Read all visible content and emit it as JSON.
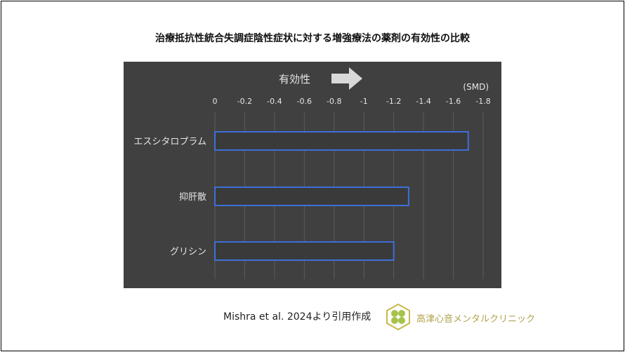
{
  "page": {
    "title": "治療抵抗性統合失調症陰性症状に対する増強療法の薬剤の有効性の比較",
    "source": "Mishra et al. 2024より引用作成",
    "clinic_name": "高津心音メンタルクリニック",
    "logo_icon": "clover-hexagon-logo",
    "colors": {
      "panel_bg": "#404040",
      "bar_edge": "#3d6fd8",
      "bar_fill": "#3a3a3a",
      "grid": "#5c5c5c",
      "text_light": "#e6e6e6",
      "logo_green": "#a7c24a",
      "logo_gold": "#c8b84a"
    }
  },
  "chart_data": {
    "type": "bar",
    "orientation": "horizontal",
    "categories": [
      "エスシタロプラム",
      "抑肝散",
      "グリシン"
    ],
    "values": [
      -1.7,
      -1.3,
      -1.2
    ],
    "unit_label": "(SMD)",
    "direction_label": "有効性",
    "direction_icon": "right-arrow-icon",
    "xlim": [
      0,
      -1.8
    ],
    "xticks": [
      0,
      -0.2,
      -0.4,
      -0.6,
      -0.8,
      -1,
      -1.2,
      -1.4,
      -1.6,
      -1.8
    ],
    "xtick_labels": [
      "0",
      "-0.2",
      "-0.4",
      "-0.6",
      "-0.8",
      "-1",
      "-1.2",
      "-1.4",
      "-1.6",
      "-1.8"
    ],
    "grid": true,
    "tick_position": "top"
  }
}
